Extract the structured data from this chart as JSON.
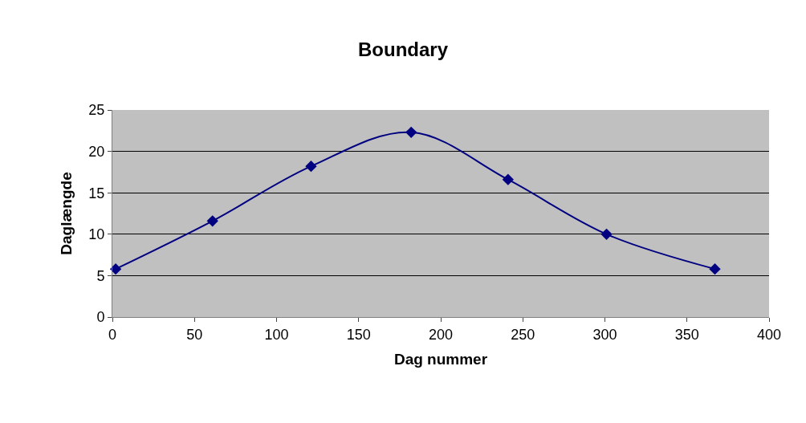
{
  "chart_data": {
    "type": "line",
    "title": "Boundary",
    "xlabel": "Dag nummer",
    "ylabel": "Daglængde",
    "x": [
      2,
      61,
      121,
      182,
      241,
      301,
      367
    ],
    "series": [
      {
        "color": "#000080",
        "values": [
          5.8,
          11.6,
          18.2,
          22.3,
          16.6,
          10.0,
          5.8
        ]
      }
    ],
    "xlim": [
      0,
      400
    ],
    "xticks": [
      0,
      50,
      100,
      150,
      200,
      250,
      300,
      350,
      400
    ],
    "ylim": [
      0,
      25
    ],
    "yticks": [
      0,
      5,
      10,
      15,
      20,
      25
    ],
    "grid": "y",
    "legend": false,
    "marker": "diamond",
    "line_style": "solid"
  }
}
